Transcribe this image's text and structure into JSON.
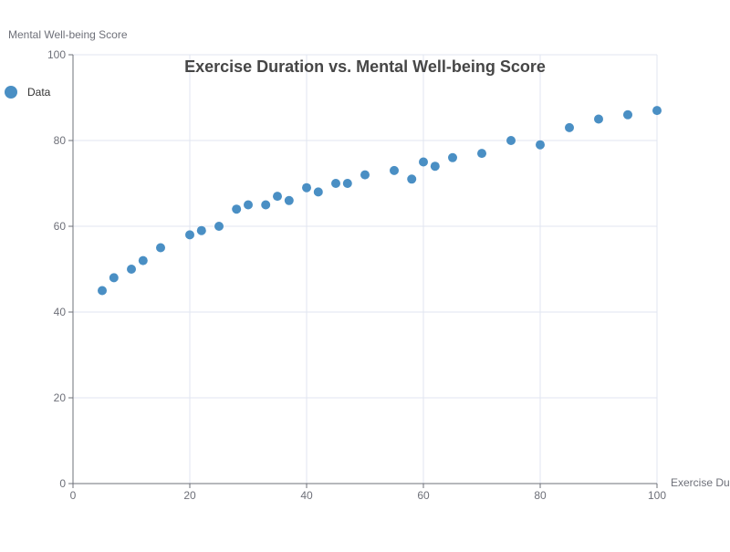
{
  "chart_data": {
    "type": "scatter",
    "title": "Exercise Duration vs. Mental Well-being Score",
    "xlabel": "Exercise Duration",
    "ylabel": "Mental Well-being Score",
    "xlim": [
      0,
      100
    ],
    "ylim": [
      0,
      100
    ],
    "x_ticks": [
      0,
      20,
      40,
      60,
      80,
      100
    ],
    "y_ticks": [
      0,
      20,
      40,
      60,
      80,
      100
    ],
    "grid": true,
    "legend_position": "top-left",
    "series": [
      {
        "name": "Data",
        "color": "#4a8fc4",
        "points": [
          {
            "x": 5,
            "y": 45
          },
          {
            "x": 7,
            "y": 48
          },
          {
            "x": 10,
            "y": 50
          },
          {
            "x": 12,
            "y": 52
          },
          {
            "x": 15,
            "y": 55
          },
          {
            "x": 20,
            "y": 58
          },
          {
            "x": 22,
            "y": 59
          },
          {
            "x": 25,
            "y": 60
          },
          {
            "x": 28,
            "y": 64
          },
          {
            "x": 30,
            "y": 65
          },
          {
            "x": 33,
            "y": 65
          },
          {
            "x": 35,
            "y": 67
          },
          {
            "x": 37,
            "y": 66
          },
          {
            "x": 40,
            "y": 69
          },
          {
            "x": 42,
            "y": 68
          },
          {
            "x": 45,
            "y": 70
          },
          {
            "x": 47,
            "y": 70
          },
          {
            "x": 50,
            "y": 72
          },
          {
            "x": 55,
            "y": 73
          },
          {
            "x": 58,
            "y": 71
          },
          {
            "x": 60,
            "y": 75
          },
          {
            "x": 62,
            "y": 74
          },
          {
            "x": 65,
            "y": 76
          },
          {
            "x": 70,
            "y": 77
          },
          {
            "x": 75,
            "y": 80
          },
          {
            "x": 80,
            "y": 79
          },
          {
            "x": 85,
            "y": 83
          },
          {
            "x": 90,
            "y": 85
          },
          {
            "x": 95,
            "y": 86
          },
          {
            "x": 100,
            "y": 87
          }
        ]
      }
    ]
  },
  "colors": {
    "axis": "#6e7079",
    "grid": "#e0e6f1",
    "point": "#4a8fc4"
  }
}
